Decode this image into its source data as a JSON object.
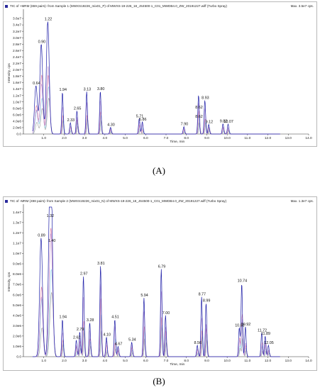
{
  "chart_data": [
    {
      "id": "A",
      "type": "line",
      "caption": "(A)",
      "header": "TIC of +MRM (659 pairs): from Sample 1 (MWXS19226_mix01_P) of MWXS-19-226_18_JS4500-1_C01_MWDB4.0_ZW_20191227.wiff (Turbo Spray)",
      "max_label": "Max. 3.5e7 cps.",
      "xlabel": "Time, min",
      "ylabel": "Intensity, cps",
      "xlim": [
        0.0,
        14.0
      ],
      "ylim": [
        0,
        38000000
      ],
      "x_ticks": [
        {
          "value": 1.0,
          "label": "1.0"
        },
        {
          "value": 2.0,
          "label": "2.0"
        },
        {
          "value": 3.0,
          "label": "3.0"
        },
        {
          "value": 4.0,
          "label": "4.0"
        },
        {
          "value": 5.0,
          "label": "5.0"
        },
        {
          "value": 6.0,
          "label": "6.0"
        },
        {
          "value": 7.0,
          "label": "7.0"
        },
        {
          "value": 8.0,
          "label": "8.0"
        },
        {
          "value": 9.0,
          "label": "9.0"
        },
        {
          "value": 10.0,
          "label": "10.0"
        },
        {
          "value": 11.0,
          "label": "11.0"
        },
        {
          "value": 12.0,
          "label": "12.0"
        },
        {
          "value": 13.0,
          "label": "13.0"
        },
        {
          "value": 14.0,
          "label": "14.0"
        }
      ],
      "y_ticks": [
        {
          "value": 0,
          "label": "0.0"
        },
        {
          "value": 2000000,
          "label": "2.0e6"
        },
        {
          "value": 4000000,
          "label": "4.0e6"
        },
        {
          "value": 6000000,
          "label": "6.0e6"
        },
        {
          "value": 8000000,
          "label": "8.0e6"
        },
        {
          "value": 10000000,
          "label": "1.0e7"
        },
        {
          "value": 12000000,
          "label": "1.2e7"
        },
        {
          "value": 14000000,
          "label": "1.4e7"
        },
        {
          "value": 16000000,
          "label": "1.6e7"
        },
        {
          "value": 18000000,
          "label": "1.8e7"
        },
        {
          "value": 20000000,
          "label": "2.0e7"
        },
        {
          "value": 22000000,
          "label": "2.2e7"
        },
        {
          "value": 24000000,
          "label": "2.4e7"
        },
        {
          "value": 26000000,
          "label": "2.6e7"
        },
        {
          "value": 28000000,
          "label": "2.8e7"
        },
        {
          "value": 30000000,
          "label": "3.0e7"
        },
        {
          "value": 32000000,
          "label": "3.2e7"
        },
        {
          "value": 34000000,
          "label": "3.4e7"
        },
        {
          "value": 36000000,
          "label": "3.6e7"
        }
      ],
      "peaks": [
        {
          "x": 0.64,
          "y": 15000000,
          "label": "0.64"
        },
        {
          "x": 0.9,
          "y": 28000000,
          "label": "0.90"
        },
        {
          "x": 1.22,
          "y": 35000000,
          "label": "1.22"
        },
        {
          "x": 1.94,
          "y": 13000000,
          "label": "1.94"
        },
        {
          "x": 2.33,
          "y": 3500000,
          "label": "2.33"
        },
        {
          "x": 2.65,
          "y": 7200000,
          "label": "2.65"
        },
        {
          "x": 3.13,
          "y": 13200000,
          "label": "3.13"
        },
        {
          "x": 3.8,
          "y": 13300000,
          "label": "3.80"
        },
        {
          "x": 4.3,
          "y": 2100000,
          "label": "4.30"
        },
        {
          "x": 5.71,
          "y": 4800000,
          "label": "5.71"
        },
        {
          "x": 5.86,
          "y": 3800000,
          "label": "5.86"
        },
        {
          "x": 7.9,
          "y": 2300000,
          "label": "7.90"
        },
        {
          "x": 8.62,
          "y": 7500000,
          "label": "8.62"
        },
        {
          "x": 8.62,
          "y": 4600000,
          "label": "8.62"
        },
        {
          "x": 8.93,
          "y": 10500000,
          "label": "8.93"
        },
        {
          "x": 9.12,
          "y": 3000000,
          "label": "9.12"
        },
        {
          "x": 9.82,
          "y": 3200000,
          "label": "9.82"
        },
        {
          "x": 10.07,
          "y": 3100000,
          "label": "10.07"
        }
      ],
      "series_colors": [
        "#1f1fa8",
        "#c49ad8",
        "#e07aa0",
        "#8ad0e8",
        "#9a9a9a"
      ]
    },
    {
      "id": "B",
      "type": "line",
      "caption": "(B)",
      "header": "TIC of -MRM (498 pairs): from Sample 2 (MWXS19226_mix01_N) of MWXS-19-226_18_JS4500-1_C01_MWDB4.0_ZW_20191227.wiff (Turbo Spray)",
      "max_label": "Max. 1.3e7 cps.",
      "xlabel": "Time, min",
      "ylabel": "Intensity, cps",
      "xlim": [
        0.0,
        14.0
      ],
      "ylim": [
        0,
        14500000
      ],
      "x_ticks": [
        {
          "value": 1.0,
          "label": "1.0"
        },
        {
          "value": 2.0,
          "label": "2.0"
        },
        {
          "value": 3.0,
          "label": "3.0"
        },
        {
          "value": 4.0,
          "label": "4.0"
        },
        {
          "value": 5.0,
          "label": "5.0"
        },
        {
          "value": 6.0,
          "label": "6.0"
        },
        {
          "value": 7.0,
          "label": "7.0"
        },
        {
          "value": 8.0,
          "label": "8.0"
        },
        {
          "value": 9.0,
          "label": "9.0"
        },
        {
          "value": 10.0,
          "label": "10.0"
        },
        {
          "value": 11.0,
          "label": "11.0"
        },
        {
          "value": 12.0,
          "label": "12.0"
        },
        {
          "value": 13.0,
          "label": "13.0"
        },
        {
          "value": 14.0,
          "label": "14.0"
        }
      ],
      "y_ticks": [
        {
          "value": 0,
          "label": "0.0"
        },
        {
          "value": 1000000,
          "label": "1.0e6"
        },
        {
          "value": 2000000,
          "label": "2.0e6"
        },
        {
          "value": 3000000,
          "label": "3.0e6"
        },
        {
          "value": 4000000,
          "label": "4.0e6"
        },
        {
          "value": 5000000,
          "label": "5.0e6"
        },
        {
          "value": 6000000,
          "label": "6.0e6"
        },
        {
          "value": 7000000,
          "label": "7.0e6"
        },
        {
          "value": 8000000,
          "label": "8.0e6"
        },
        {
          "value": 9000000,
          "label": "9.0e6"
        },
        {
          "value": 10000000,
          "label": "1.0e7"
        },
        {
          "value": 11000000,
          "label": "1.1e7"
        },
        {
          "value": 12000000,
          "label": "1.2e7"
        },
        {
          "value": 13000000,
          "label": "1.3e7"
        },
        {
          "value": 14000000,
          "label": "1.4e7"
        }
      ],
      "peaks": [
        {
          "x": 0.89,
          "y": 11500000,
          "label": "0.89"
        },
        {
          "x": 1.32,
          "y": 13400000,
          "label": "1.32"
        },
        {
          "x": 1.4,
          "y": 11000000,
          "label": "1.40"
        },
        {
          "x": 1.94,
          "y": 3600000,
          "label": "1.94"
        },
        {
          "x": 2.62,
          "y": 1600000,
          "label": "2.62"
        },
        {
          "x": 2.79,
          "y": 2400000,
          "label": "2.79"
        },
        {
          "x": 2.97,
          "y": 7800000,
          "label": "2.97"
        },
        {
          "x": 3.28,
          "y": 3300000,
          "label": "3.28"
        },
        {
          "x": 3.81,
          "y": 8800000,
          "label": "3.81"
        },
        {
          "x": 4.1,
          "y": 1900000,
          "label": "4.10"
        },
        {
          "x": 4.51,
          "y": 3600000,
          "label": "4.51"
        },
        {
          "x": 4.67,
          "y": 1000000,
          "label": "4.67"
        },
        {
          "x": 5.34,
          "y": 1400000,
          "label": "5.34"
        },
        {
          "x": 5.94,
          "y": 5700000,
          "label": "5.94"
        },
        {
          "x": 6.79,
          "y": 8500000,
          "label": "6.79"
        },
        {
          "x": 7.0,
          "y": 4000000,
          "label": "7.00"
        },
        {
          "x": 8.56,
          "y": 1100000,
          "label": "8.56"
        },
        {
          "x": 8.77,
          "y": 5800000,
          "label": "8.77"
        },
        {
          "x": 8.99,
          "y": 5200000,
          "label": "8.99"
        },
        {
          "x": 10.62,
          "y": 2800000,
          "label": "10.62"
        },
        {
          "x": 10.74,
          "y": 7100000,
          "label": "10.74"
        },
        {
          "x": 10.92,
          "y": 2900000,
          "label": "10.92"
        },
        {
          "x": 11.72,
          "y": 2300000,
          "label": "11.72"
        },
        {
          "x": 11.89,
          "y": 2000000,
          "label": "11.89"
        },
        {
          "x": 12.05,
          "y": 1100000,
          "label": "12.05"
        }
      ],
      "series_colors": [
        "#1f1fa8",
        "#c49ad8",
        "#e07aa0",
        "#8ad0e8",
        "#9a9a9a"
      ]
    }
  ]
}
